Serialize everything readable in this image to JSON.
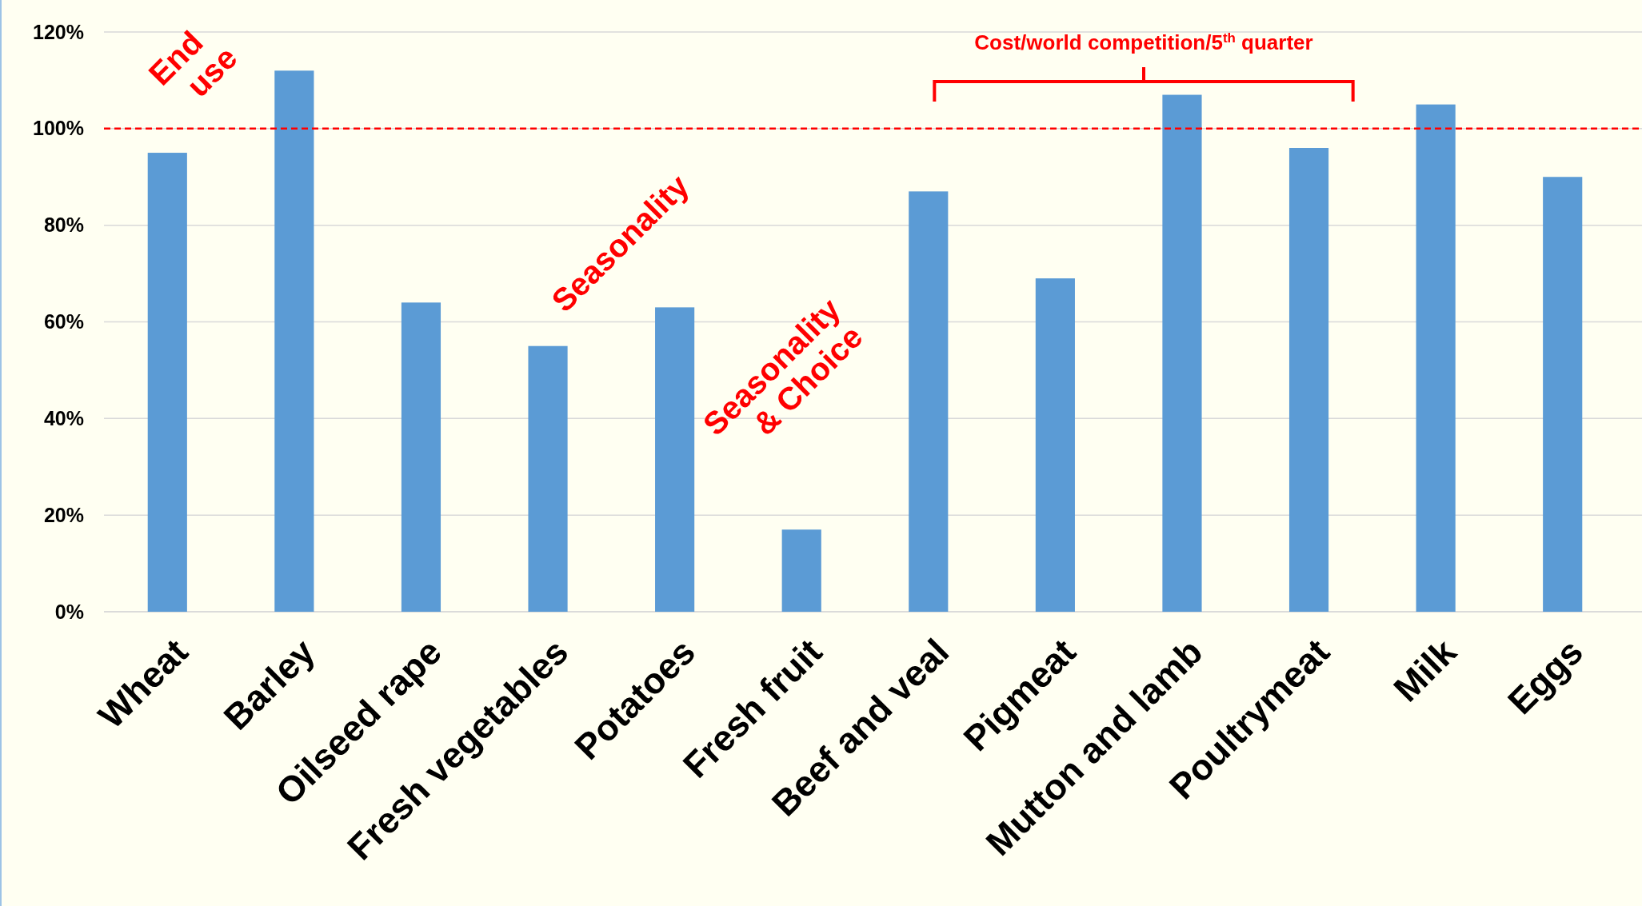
{
  "chart_data": {
    "type": "bar",
    "categories": [
      "Wheat",
      "Barley",
      "Oilseed rape",
      "Fresh vegetables",
      "Potatoes",
      "Fresh fruit",
      "Beef and veal",
      "Pigmeat",
      "Mutton and lamb",
      "Poultrymeat",
      "Milk",
      "Eggs"
    ],
    "values": [
      95,
      112,
      64,
      55,
      63,
      17,
      87,
      69,
      107,
      96,
      105,
      90
    ],
    "color": "#5b9bd5",
    "ylim": [
      0,
      120
    ],
    "yticks": [
      {
        "value": 0,
        "label": "0%"
      },
      {
        "value": 20,
        "label": "20%"
      },
      {
        "value": 40,
        "label": "40%"
      },
      {
        "value": 60,
        "label": "60%"
      },
      {
        "value": 80,
        "label": "80%"
      },
      {
        "value": 100,
        "label": "100%"
      },
      {
        "value": 120,
        "label": "120%"
      }
    ],
    "grid": "y",
    "ref_lines": [
      {
        "axis": "y",
        "value": 100,
        "color": "#ff0000",
        "line_style": "dashed"
      }
    ],
    "annotations": [
      "End use",
      "Seasonality",
      "Seasonality & Choice",
      "Cost/world competition/5$^{th}$ quarter"
    ]
  }
}
